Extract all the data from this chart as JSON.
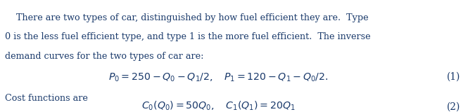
{
  "background_color": "#ffffff",
  "text_color": "#1a3a6b",
  "figsize": [
    6.75,
    1.6
  ],
  "dpi": 100,
  "line1": "    There are two types of car, distinguished by how fuel efficient they are.  Type",
  "line2": "0 is the less fuel efficient type, and type 1 is the more fuel efficient.  The inverse",
  "line3": "demand curves for the two types of car are:",
  "equation1": "$P_0 = 250 - Q_0 - Q_1/2, \\quad P_1 = 120 - Q_1 - Q_0/2.$",
  "eq1_label": "(1)",
  "cost_text": "Cost functions are",
  "equation2": "$C_0(Q_0) = 50Q_0, \\quad C_1(Q_1) = 20Q_1$",
  "eq2_label": "(2)",
  "font_size_body": 9.2,
  "font_size_eq": 10.2,
  "font_size_label": 9.8,
  "font_size_cost": 9.2
}
